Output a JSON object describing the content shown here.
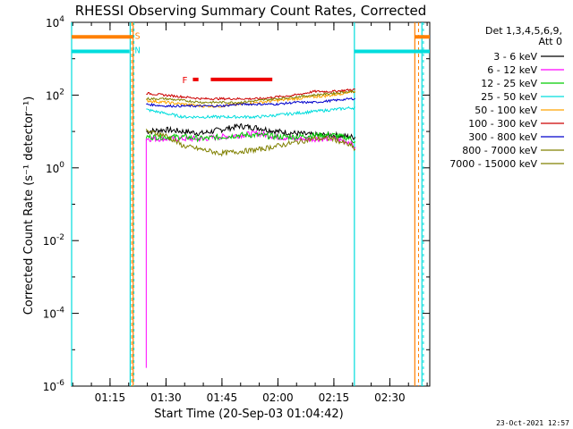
{
  "chart_data": {
    "type": "line",
    "title": "RHESSI Observing Summary Count Rates, Corrected",
    "xlabel": "Start Time (20-Sep-03 01:04:42)",
    "ylabel": "Corrected Count Rate (s⁻¹ detector⁻¹)",
    "y_scale": "log",
    "ylim_exp": [
      -6,
      4
    ],
    "y_ticks": [
      {
        "exp": -6,
        "label": "10",
        "sup": "-6"
      },
      {
        "exp": -4,
        "label": "10",
        "sup": "-4"
      },
      {
        "exp": -2,
        "label": "10",
        "sup": "-2"
      },
      {
        "exp": 0,
        "label": "10",
        "sup": "0"
      },
      {
        "exp": 2,
        "label": "10",
        "sup": "2"
      },
      {
        "exp": 4,
        "label": "10",
        "sup": "4"
      }
    ],
    "x_unit": "minutes after 01:04:42",
    "xlim": [
      0,
      96
    ],
    "x_ticks": [
      {
        "t": 10.3,
        "label": "01:15"
      },
      {
        "t": 25.3,
        "label": "01:30"
      },
      {
        "t": 40.3,
        "label": "01:45"
      },
      {
        "t": 55.3,
        "label": "02:00"
      },
      {
        "t": 70.3,
        "label": "02:15"
      },
      {
        "t": 85.3,
        "label": "02:30"
      }
    ],
    "legend_header": [
      "Det 1,3,4,5,6,9,",
      "Att 0"
    ],
    "series": [
      {
        "name": "3 - 6 keV",
        "color": "#000000",
        "x": [
          20,
          25,
          30,
          35,
          40,
          45,
          50,
          55,
          60,
          65,
          70,
          75,
          76
        ],
        "y_exp": [
          1.0,
          1.05,
          1.0,
          0.95,
          1.05,
          1.15,
          1.1,
          1.0,
          0.95,
          0.9,
          0.9,
          0.85,
          0.85
        ],
        "y_noise": 0.08
      },
      {
        "name": "6 - 12 keV",
        "color": "#ff00ff",
        "x": [
          20,
          25,
          30,
          35,
          40,
          45,
          50,
          55,
          60,
          65,
          70,
          75,
          76
        ],
        "y_exp": [
          0.8,
          0.8,
          0.8,
          0.8,
          0.85,
          0.9,
          0.95,
          0.85,
          0.8,
          0.8,
          0.8,
          0.7,
          0.5
        ],
        "y_noise": 0.08
      },
      {
        "name": "12 - 25 keV",
        "color": "#00cc00",
        "x": [
          20,
          25,
          30,
          35,
          40,
          45,
          50,
          55,
          60,
          65,
          70,
          75,
          76
        ],
        "y_exp": [
          0.85,
          0.85,
          0.85,
          0.8,
          0.85,
          0.9,
          0.9,
          0.85,
          0.85,
          0.9,
          0.9,
          0.8,
          0.7
        ],
        "y_noise": 0.08
      },
      {
        "name": "25 - 50 keV",
        "color": "#00dddd",
        "x": [
          20,
          25,
          30,
          35,
          40,
          45,
          50,
          55,
          60,
          65,
          70,
          75,
          76
        ],
        "y_exp": [
          1.6,
          1.5,
          1.4,
          1.4,
          1.4,
          1.4,
          1.4,
          1.45,
          1.5,
          1.55,
          1.6,
          1.65,
          1.65
        ],
        "y_noise": 0.04
      },
      {
        "name": "50 - 100 keV",
        "color": "#ffa500",
        "x": [
          20,
          25,
          30,
          35,
          40,
          45,
          50,
          55,
          60,
          65,
          70,
          75,
          76
        ],
        "y_exp": [
          1.85,
          1.8,
          1.75,
          1.7,
          1.7,
          1.75,
          1.8,
          1.85,
          1.9,
          1.95,
          2.0,
          2.1,
          2.1
        ],
        "y_noise": 0.04
      },
      {
        "name": "100 - 300 keV",
        "color": "#cc0000",
        "x": [
          20,
          25,
          30,
          35,
          40,
          45,
          50,
          55,
          60,
          65,
          70,
          75,
          76
        ],
        "y_exp": [
          2.05,
          2.0,
          1.95,
          1.9,
          1.9,
          1.9,
          1.9,
          1.95,
          2.0,
          2.1,
          2.1,
          2.15,
          2.15
        ],
        "y_noise": 0.03
      },
      {
        "name": "300 - 800 keV",
        "color": "#0000cc",
        "x": [
          20,
          25,
          30,
          35,
          40,
          45,
          50,
          55,
          60,
          65,
          70,
          75,
          76
        ],
        "y_exp": [
          1.75,
          1.7,
          1.7,
          1.7,
          1.7,
          1.75,
          1.75,
          1.75,
          1.8,
          1.8,
          1.85,
          1.9,
          1.9
        ],
        "y_noise": 0.03
      },
      {
        "name": "800 - 7000 keV",
        "color": "#808000",
        "x": [
          20,
          25,
          30,
          35,
          40,
          45,
          50,
          55,
          60,
          65,
          70,
          75,
          76
        ],
        "y_exp": [
          1.9,
          1.9,
          1.85,
          1.8,
          1.8,
          1.8,
          1.85,
          1.9,
          1.95,
          2.0,
          2.05,
          2.1,
          2.1
        ],
        "y_noise": 0.03
      },
      {
        "name": "7000 - 15000 keV",
        "color": "#808000",
        "x": [
          20,
          25,
          30,
          35,
          40,
          45,
          50,
          55,
          60,
          65,
          70,
          75,
          76
        ],
        "y_exp": [
          1.0,
          0.9,
          0.6,
          0.5,
          0.4,
          0.45,
          0.5,
          0.6,
          0.7,
          0.8,
          0.8,
          0.6,
          0.5
        ],
        "y_noise": 0.07
      }
    ],
    "flag_letters": {
      "saa": "S",
      "night": "N",
      "flare": "F"
    },
    "saa_intervals": [
      [
        0,
        16.5
      ],
      [
        92,
        96
      ]
    ],
    "night_intervals": [
      [
        0,
        15.5
      ],
      [
        75.8,
        96
      ]
    ],
    "flare_short": [
      32.5,
      34.0
    ],
    "flare_long": [
      37.3,
      53.8
    ],
    "saa_level_exp": 3.6,
    "night_level_exp": 3.2,
    "flare_level_exp": 2.43,
    "vline_cyan": [
      0,
      15.7,
      75.8,
      93.9
    ],
    "vline_orange": [
      16.5,
      92.0
    ],
    "timestamp": "23-Oct-2021 12:57"
  },
  "legend_color_map": {
    "black": "#000000",
    "magenta": "#ff00ff",
    "green": "#00cc00",
    "cyan": "#00dddd",
    "orange": "#ffa500",
    "red": "#cc0000",
    "blue": "#0000cc",
    "olive": "#808000"
  }
}
